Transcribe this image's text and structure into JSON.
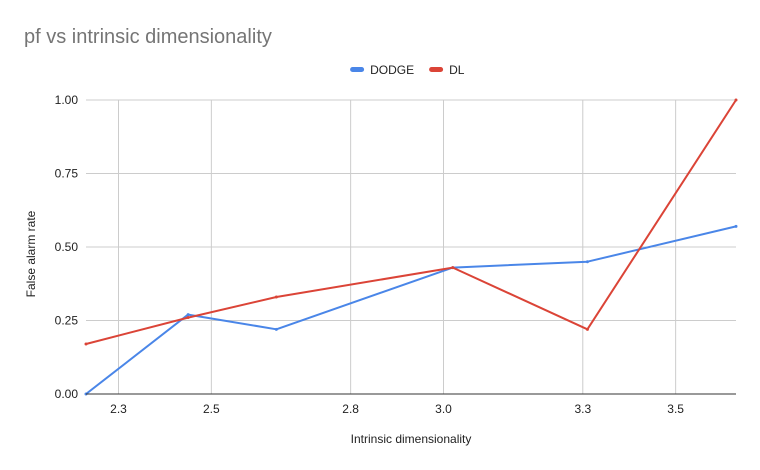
{
  "chart_data": {
    "type": "line",
    "title": "pf vs intrinsic dimensionality",
    "xlabel": "Intrinsic dimensionality",
    "ylabel": "False alarm rate",
    "xlim": [
      2.23,
      3.63
    ],
    "ylim": [
      0,
      1
    ],
    "x_ticks": [
      2.3,
      2.5,
      2.8,
      3.0,
      3.3,
      3.5
    ],
    "x_tick_labels": [
      "2.3",
      "2.5",
      "2.8",
      "3.0",
      "3.3",
      "3.5"
    ],
    "y_ticks": [
      0,
      0.25,
      0.5,
      0.75,
      1.0
    ],
    "y_tick_labels": [
      "0.00",
      "0.25",
      "0.50",
      "0.75",
      "1.00"
    ],
    "grid": true,
    "legend_position": "top",
    "series": [
      {
        "name": "DODGE",
        "color": "#4a86e8",
        "points": [
          [
            2.23,
            0.0
          ],
          [
            2.45,
            0.27
          ],
          [
            2.64,
            0.22
          ],
          [
            3.02,
            0.43
          ],
          [
            3.31,
            0.45
          ],
          [
            3.63,
            0.57
          ]
        ]
      },
      {
        "name": "DL",
        "color": "#db4437",
        "points": [
          [
            2.23,
            0.17
          ],
          [
            2.45,
            0.26
          ],
          [
            2.64,
            0.33
          ],
          [
            3.02,
            0.43
          ],
          [
            3.31,
            0.22
          ],
          [
            3.63,
            1.0
          ]
        ]
      }
    ]
  }
}
